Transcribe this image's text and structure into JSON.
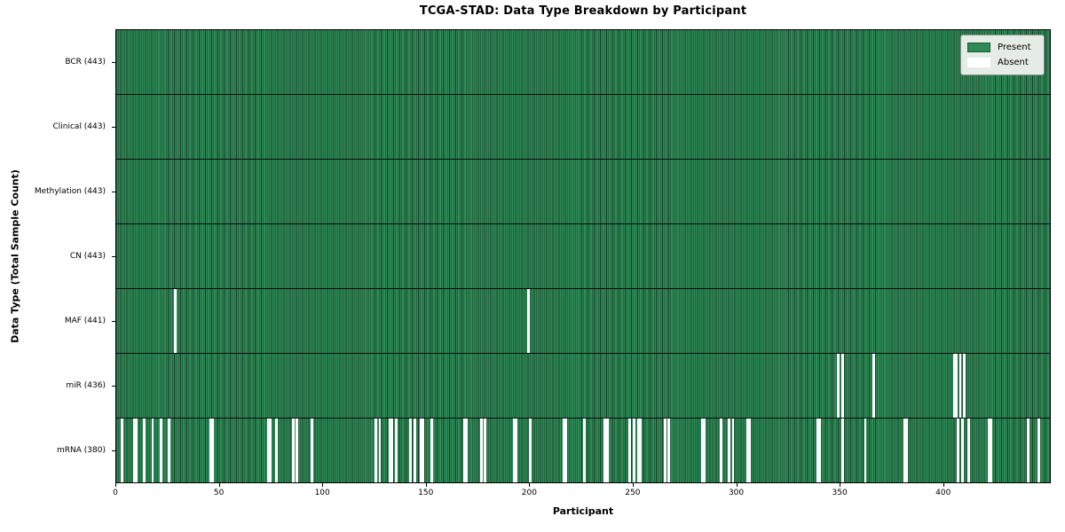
{
  "chart_data": {
    "type": "heatmap",
    "title": "TCGA-STAD: Data Type Breakdown by Participant",
    "xlabel": "Participant",
    "ylabel": "Data Type (Total Sample Count)",
    "x_ticks": [
      0,
      50,
      100,
      150,
      200,
      250,
      300,
      350,
      400
    ],
    "x_max": 452,
    "grid": false,
    "legend_position": "upper right",
    "legend": [
      {
        "label": "Present",
        "color": "#2e8b57"
      },
      {
        "label": "Absent",
        "color": "#ffffff"
      }
    ],
    "colors": {
      "present": "#2e8b57",
      "absent": "#ffffff",
      "row_divider": "#0b0b0b"
    },
    "rows": [
      {
        "label": "BCR",
        "total": 443,
        "absent": []
      },
      {
        "label": "Clinical",
        "total": 443,
        "absent": []
      },
      {
        "label": "Methylation",
        "total": 443,
        "absent": []
      },
      {
        "label": "CN",
        "total": 443,
        "absent": []
      },
      {
        "label": "MAF",
        "total": 441,
        "absent": [
          28,
          199
        ]
      },
      {
        "label": "miR",
        "total": 436,
        "absent": [
          349,
          351,
          366,
          405,
          406,
          408,
          410
        ]
      },
      {
        "label": "mRNA",
        "total": 380,
        "absent": [
          2,
          8,
          9,
          13,
          17,
          21,
          25,
          45,
          46,
          73,
          74,
          77,
          85,
          87,
          94,
          125,
          127,
          132,
          133,
          135,
          142,
          144,
          147,
          148,
          152,
          168,
          169,
          176,
          178,
          192,
          193,
          200,
          216,
          217,
          226,
          236,
          237,
          248,
          250,
          252,
          253,
          265,
          267,
          283,
          284,
          292,
          296,
          298,
          305,
          306,
          339,
          340,
          351,
          362,
          381,
          382,
          407,
          409,
          412,
          422,
          423,
          441,
          446
        ]
      }
    ]
  }
}
